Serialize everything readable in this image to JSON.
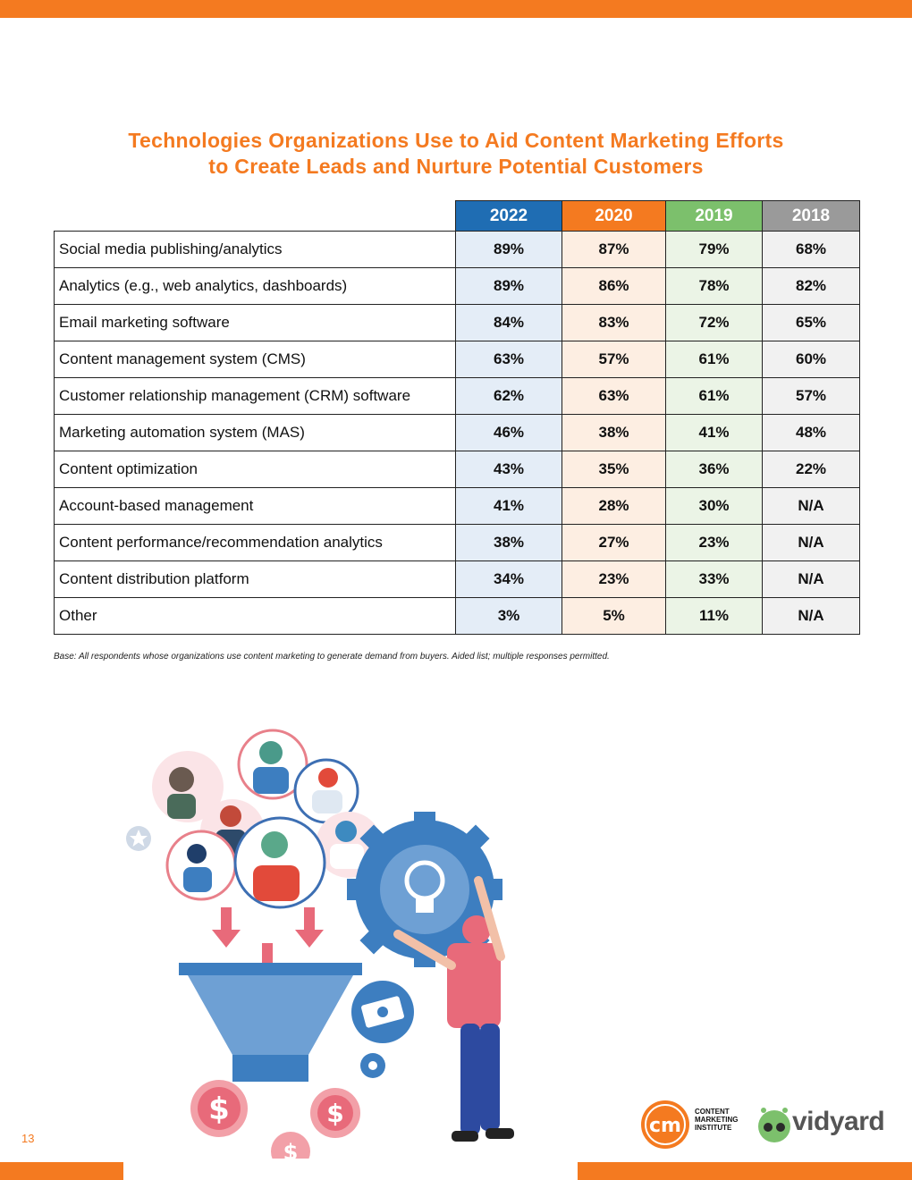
{
  "title": {
    "line1": "Technologies Organizations Use to Aid Content Marketing Efforts",
    "line2": "to Create Leads and Nurture Potential Customers"
  },
  "table": {
    "headers": [
      "2022",
      "2020",
      "2019",
      "2018"
    ],
    "header_colors": [
      "#1f6db3",
      "#f47a20",
      "#7cc06c",
      "#9a9a9a"
    ],
    "rows": [
      {
        "label": "Social media publishing/analytics",
        "v2022": "89%",
        "v2020": "87%",
        "v2019": "79%",
        "v2018": "68%"
      },
      {
        "label": "Analytics (e.g., web analytics, dashboards)",
        "v2022": "89%",
        "v2020": "86%",
        "v2019": "78%",
        "v2018": "82%"
      },
      {
        "label": "Email marketing software",
        "v2022": "84%",
        "v2020": "83%",
        "v2019": "72%",
        "v2018": "65%"
      },
      {
        "label": "Content management system (CMS)",
        "v2022": "63%",
        "v2020": "57%",
        "v2019": "61%",
        "v2018": "60%"
      },
      {
        "label": "Customer relationship management (CRM) software",
        "v2022": "62%",
        "v2020": "63%",
        "v2019": "61%",
        "v2018": "57%"
      },
      {
        "label": "Marketing automation system (MAS)",
        "v2022": "46%",
        "v2020": "38%",
        "v2019": "41%",
        "v2018": "48%"
      },
      {
        "label": "Content optimization",
        "v2022": "43%",
        "v2020": "35%",
        "v2019": "36%",
        "v2018": "22%"
      },
      {
        "label": "Account-based management",
        "v2022": "41%",
        "v2020": "28%",
        "v2019": "30%",
        "v2018": "N/A"
      },
      {
        "label": "Content performance/recommendation analytics",
        "v2022": "38%",
        "v2020": "27%",
        "v2019": "23%",
        "v2018": "N/A"
      },
      {
        "label": "Content distribution platform",
        "v2022": "34%",
        "v2020": "23%",
        "v2019": "33%",
        "v2018": "N/A"
      },
      {
        "label": "Other",
        "v2022": "3%",
        "v2020": "5%",
        "v2019": "11%",
        "v2018": "N/A"
      }
    ]
  },
  "base_note": "Base: All respondents whose organizations use content marketing to generate demand from buyers. Aided list; multiple responses permitted.",
  "page_number": "13",
  "logos": {
    "cmi": {
      "mark": "cm",
      "line1": "CONTENT",
      "line2": "MARKETING",
      "line3": "INSTITUTE"
    },
    "vidyard": {
      "name": "vidyard"
    }
  },
  "colors": {
    "accent_orange": "#f47a20",
    "blue": "#1f6db3",
    "green": "#7cc06c",
    "gray": "#9a9a9a"
  }
}
